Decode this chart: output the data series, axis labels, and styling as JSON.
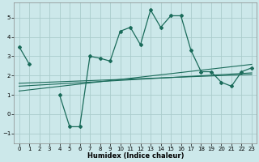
{
  "xlabel": "Humidex (Indice chaleur)",
  "background_color": "#cce8ea",
  "grid_color": "#aacccc",
  "line_color": "#1a6b5a",
  "x": [
    0,
    1,
    2,
    3,
    4,
    5,
    6,
    7,
    8,
    9,
    10,
    11,
    12,
    13,
    14,
    15,
    16,
    17,
    18,
    19,
    20,
    21,
    22,
    23
  ],
  "y_main": [
    3.5,
    2.6,
    null,
    null,
    1.0,
    -0.65,
    -0.65,
    3.0,
    2.9,
    2.75,
    4.3,
    4.5,
    3.6,
    5.4,
    4.5,
    5.1,
    5.1,
    3.3,
    2.2,
    2.2,
    1.65,
    1.45,
    2.2,
    2.4
  ],
  "y_reg1": [
    1.45,
    1.48,
    1.51,
    1.54,
    1.57,
    1.6,
    1.63,
    1.66,
    1.69,
    1.72,
    1.75,
    1.78,
    1.81,
    1.84,
    1.87,
    1.9,
    1.93,
    1.96,
    1.99,
    2.02,
    2.05,
    2.08,
    2.11,
    2.14
  ],
  "y_reg2": [
    1.2,
    1.26,
    1.32,
    1.38,
    1.44,
    1.5,
    1.56,
    1.62,
    1.68,
    1.74,
    1.8,
    1.86,
    1.92,
    1.98,
    2.04,
    2.1,
    2.16,
    2.22,
    2.28,
    2.34,
    2.4,
    2.46,
    2.52,
    2.58
  ],
  "y_reg3": [
    1.6,
    1.62,
    1.64,
    1.66,
    1.68,
    1.7,
    1.72,
    1.74,
    1.76,
    1.78,
    1.8,
    1.82,
    1.84,
    1.86,
    1.88,
    1.9,
    1.92,
    1.94,
    1.96,
    1.98,
    2.0,
    2.02,
    2.04,
    2.06
  ],
  "ylim": [
    -1.5,
    5.8
  ],
  "xlim": [
    -0.5,
    23.5
  ],
  "yticks": [
    -1,
    0,
    1,
    2,
    3,
    4,
    5
  ],
  "xticks": [
    0,
    1,
    2,
    3,
    4,
    5,
    6,
    7,
    8,
    9,
    10,
    11,
    12,
    13,
    14,
    15,
    16,
    17,
    18,
    19,
    20,
    21,
    22,
    23
  ],
  "figsize": [
    3.2,
    2.0
  ],
  "dpi": 100
}
